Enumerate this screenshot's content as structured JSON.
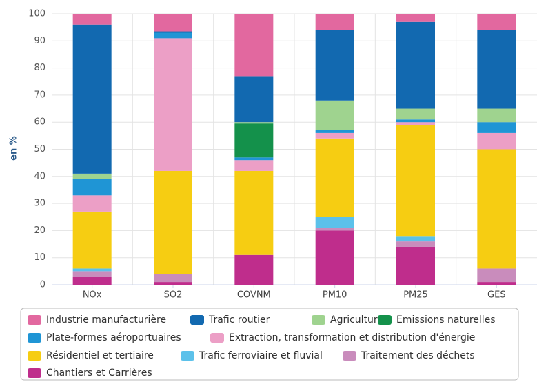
{
  "chart_data": {
    "type": "stacked_bar",
    "y_label": "en %",
    "categories": [
      "NOx",
      "SO2",
      "COVNM",
      "PM10",
      "PM25",
      "GES"
    ],
    "ylim": [
      0,
      100
    ],
    "yticks": [
      0,
      10,
      20,
      30,
      40,
      50,
      60,
      70,
      80,
      90,
      100
    ],
    "grid": true,
    "series": [
      {
        "name": "Industrie manufacturière",
        "color": "#e2689f",
        "values": [
          4,
          6.5,
          23,
          6,
          3,
          6
        ]
      },
      {
        "name": "Trafic routier",
        "color": "#1269b0",
        "values": [
          55,
          0.5,
          17,
          26,
          32,
          29
        ]
      },
      {
        "name": "Agriculture",
        "color": "#9fd38f",
        "values": [
          2,
          0,
          0.5,
          11,
          4,
          5
        ]
      },
      {
        "name": "Emissions naturelles",
        "color": "#14914b",
        "values": [
          0,
          0,
          12.5,
          0,
          0,
          0
        ]
      },
      {
        "name": "Plate-formes aéroportuaires",
        "color": "#1f95d5",
        "values": [
          6,
          2,
          1,
          1,
          1,
          4
        ]
      },
      {
        "name": "Extraction, transformation et distribution d'énergie",
        "color": "#ec9fc6",
        "values": [
          6,
          49,
          4,
          2,
          1,
          6
        ]
      },
      {
        "name": "Résidentiel et tertiaire",
        "color": "#f6cd12",
        "values": [
          21,
          38,
          31,
          29,
          41,
          44
        ]
      },
      {
        "name": "Trafic ferroviaire et fluvial",
        "color": "#5cc1ea",
        "values": [
          1,
          0,
          0,
          4,
          2,
          0
        ]
      },
      {
        "name": "Traitement des déchets",
        "color": "#c98cbc",
        "values": [
          2,
          3,
          0,
          1,
          2,
          5
        ]
      },
      {
        "name": "Chantiers et Carrières",
        "color": "#bf2d8c",
        "values": [
          3,
          1,
          11,
          20,
          14,
          1
        ]
      }
    ],
    "legend": "bottom"
  }
}
